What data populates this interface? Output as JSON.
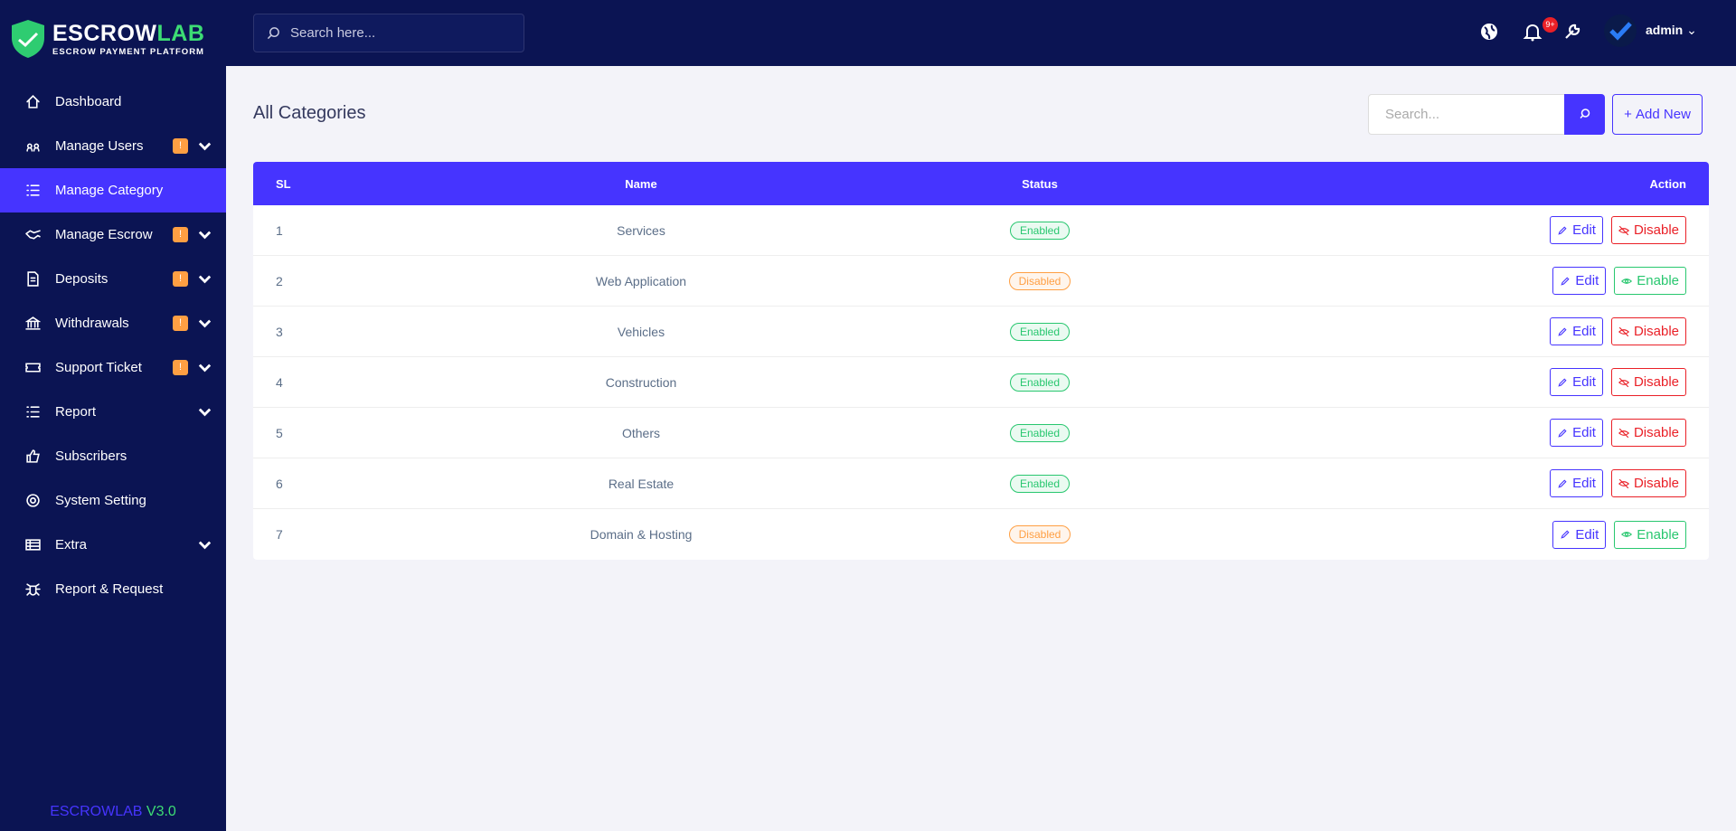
{
  "brand": {
    "name_part1": "ESCROW",
    "name_part2": "LAB",
    "tagline": "ESCROW PAYMENT PLATFORM"
  },
  "sidebar": {
    "items": [
      {
        "label": "Dashboard",
        "icon": "home"
      },
      {
        "label": "Manage Users",
        "icon": "users",
        "badge": "!",
        "dropdown": true
      },
      {
        "label": "Manage Category",
        "icon": "list",
        "active": true
      },
      {
        "label": "Manage Escrow",
        "icon": "hand",
        "badge": "!",
        "dropdown": true
      },
      {
        "label": "Deposits",
        "icon": "doc",
        "badge": "!",
        "dropdown": true
      },
      {
        "label": "Withdrawals",
        "icon": "bank",
        "badge": "!",
        "dropdown": true
      },
      {
        "label": "Support Ticket",
        "icon": "ticket",
        "badge": "!",
        "dropdown": true
      },
      {
        "label": "Report",
        "icon": "list",
        "dropdown": true
      },
      {
        "label": "Subscribers",
        "icon": "thumb"
      },
      {
        "label": "System Setting",
        "icon": "gear"
      },
      {
        "label": "Extra",
        "icon": "table",
        "dropdown": true
      },
      {
        "label": "Report & Request",
        "icon": "bug"
      }
    ],
    "footer": {
      "name": "ESCROWLAB",
      "version": "V3.0"
    }
  },
  "header": {
    "search_placeholder": "Search here...",
    "notification_count": "9+",
    "user": "admin"
  },
  "page": {
    "title": "All Categories",
    "search_placeholder": "Search...",
    "add_button": "Add New"
  },
  "table": {
    "columns": [
      "SL",
      "Name",
      "Status",
      "Action"
    ],
    "rows": [
      {
        "sl": "1",
        "name": "Services",
        "status": "Enabled",
        "actions": [
          "Edit",
          "Disable"
        ]
      },
      {
        "sl": "2",
        "name": "Web Application",
        "status": "Disabled",
        "actions": [
          "Edit",
          "Enable"
        ]
      },
      {
        "sl": "3",
        "name": "Vehicles",
        "status": "Enabled",
        "actions": [
          "Edit",
          "Disable"
        ]
      },
      {
        "sl": "4",
        "name": "Construction",
        "status": "Enabled",
        "actions": [
          "Edit",
          "Disable"
        ]
      },
      {
        "sl": "5",
        "name": "Others",
        "status": "Enabled",
        "actions": [
          "Edit",
          "Disable"
        ]
      },
      {
        "sl": "6",
        "name": "Real Estate",
        "status": "Enabled",
        "actions": [
          "Edit",
          "Disable"
        ]
      },
      {
        "sl": "7",
        "name": "Domain & Hosting",
        "status": "Disabled",
        "actions": [
          "Edit",
          "Enable"
        ]
      }
    ]
  }
}
